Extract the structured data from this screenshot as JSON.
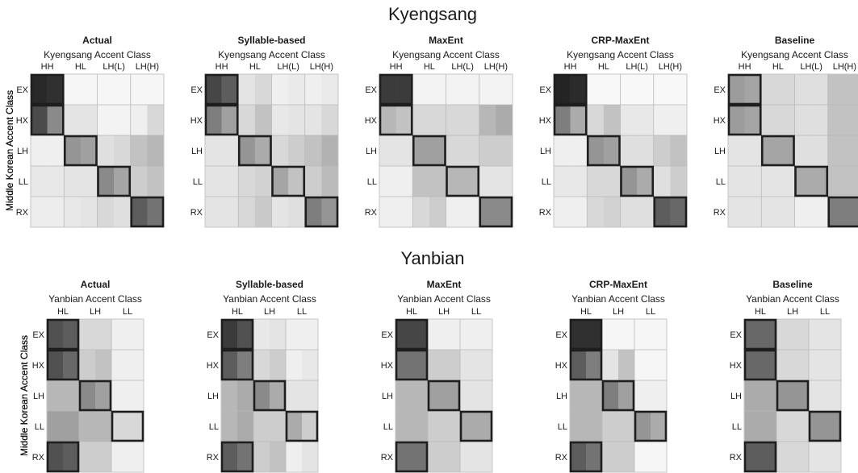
{
  "sections": [
    {
      "title": "Kyengsang",
      "chart_data": [
        {
          "type": "heatmap",
          "title": "Actual",
          "xlabel": "Kyengsang Accent Class",
          "ylabel": "Middle Korean Accent Class",
          "x_categories": [
            "HH",
            "HL",
            "LH(L)",
            "LH(H)"
          ],
          "y_categories": [
            "EX",
            "HX",
            "LH",
            "LL",
            "RX"
          ],
          "values": [
            [
              0.93,
              0.9,
              0.02,
              0.02,
              0.02,
              0.02,
              0.02,
              0.02
            ],
            [
              0.78,
              0.5,
              0.1,
              0.1,
              0.03,
              0.03,
              0.05,
              0.15
            ],
            [
              0.05,
              0.05,
              0.45,
              0.4,
              0.12,
              0.15,
              0.25,
              0.3
            ],
            [
              0.08,
              0.08,
              0.1,
              0.1,
              0.5,
              0.38,
              0.2,
              0.25
            ],
            [
              0.06,
              0.06,
              0.08,
              0.1,
              0.15,
              0.12,
              0.7,
              0.6
            ]
          ],
          "highlight": [
            [
              0,
              0
            ],
            [
              1,
              0
            ],
            [
              2,
              1
            ],
            [
              3,
              2
            ],
            [
              4,
              3
            ]
          ]
        },
        {
          "type": "heatmap",
          "title": "Syllable-based",
          "xlabel": "Kyengsang Accent Class",
          "ylabel": "Middle Korean Accent Class",
          "x_categories": [
            "HH",
            "HL",
            "LH(L)",
            "LH(H)"
          ],
          "y_categories": [
            "EX",
            "HX",
            "LH",
            "LL",
            "RX"
          ],
          "values": [
            [
              0.8,
              0.7,
              0.1,
              0.15,
              0.05,
              0.07,
              0.05,
              0.07
            ],
            [
              0.55,
              0.4,
              0.15,
              0.25,
              0.08,
              0.1,
              0.1,
              0.15
            ],
            [
              0.1,
              0.1,
              0.45,
              0.35,
              0.15,
              0.2,
              0.25,
              0.32
            ],
            [
              0.1,
              0.1,
              0.15,
              0.18,
              0.38,
              0.25,
              0.2,
              0.28
            ],
            [
              0.1,
              0.1,
              0.15,
              0.22,
              0.1,
              0.12,
              0.55,
              0.45
            ]
          ],
          "highlight": [
            [
              0,
              0
            ],
            [
              1,
              0
            ],
            [
              2,
              1
            ],
            [
              3,
              2
            ],
            [
              4,
              3
            ]
          ]
        },
        {
          "type": "heatmap",
          "title": "MaxEnt",
          "xlabel": "Kyengsang Accent Class",
          "ylabel": "Middle Korean Accent Class",
          "x_categories": [
            "HH",
            "HL",
            "LH(L)",
            "LH(H)"
          ],
          "y_categories": [
            "EX",
            "HX",
            "LH",
            "LL",
            "RX"
          ],
          "values": [
            [
              0.85,
              0.85,
              0.03,
              0.03,
              0.03,
              0.03,
              0.03,
              0.03
            ],
            [
              0.3,
              0.25,
              0.15,
              0.15,
              0.15,
              0.15,
              0.3,
              0.35
            ],
            [
              0.1,
              0.1,
              0.4,
              0.4,
              0.15,
              0.15,
              0.2,
              0.2
            ],
            [
              0.05,
              0.05,
              0.25,
              0.25,
              0.3,
              0.3,
              0.1,
              0.1
            ],
            [
              0.05,
              0.05,
              0.15,
              0.2,
              0.05,
              0.05,
              0.5,
              0.5
            ]
          ],
          "highlight": [
            [
              0,
              0
            ],
            [
              1,
              0
            ],
            [
              2,
              1
            ],
            [
              3,
              2
            ],
            [
              4,
              3
            ]
          ]
        },
        {
          "type": "heatmap",
          "title": "CRP-MaxEnt",
          "xlabel": "Kyengsang Accent Class",
          "ylabel": "Middle Korean Accent Class",
          "x_categories": [
            "HH",
            "HL",
            "LH(L)",
            "LH(H)"
          ],
          "y_categories": [
            "EX",
            "HX",
            "LH",
            "LL",
            "RX"
          ],
          "values": [
            [
              0.95,
              0.92,
              0.01,
              0.01,
              0.01,
              0.01,
              0.01,
              0.01
            ],
            [
              0.55,
              0.35,
              0.15,
              0.25,
              0.08,
              0.08,
              0.05,
              0.05
            ],
            [
              0.05,
              0.05,
              0.45,
              0.4,
              0.12,
              0.12,
              0.2,
              0.25
            ],
            [
              0.08,
              0.08,
              0.15,
              0.15,
              0.45,
              0.35,
              0.12,
              0.2
            ],
            [
              0.05,
              0.05,
              0.15,
              0.18,
              0.12,
              0.12,
              0.7,
              0.65
            ]
          ],
          "highlight": [
            [
              0,
              0
            ],
            [
              1,
              0
            ],
            [
              2,
              1
            ],
            [
              3,
              2
            ],
            [
              4,
              3
            ]
          ]
        },
        {
          "type": "heatmap",
          "title": "Baseline",
          "xlabel": "Kyengsang Accent Class",
          "ylabel": "Middle Korean Accent Class",
          "x_categories": [
            "HH",
            "HL",
            "LH(L)",
            "LH(H)"
          ],
          "y_categories": [
            "EX",
            "HX",
            "LH",
            "LL",
            "RX"
          ],
          "values": [
            [
              0.42,
              0.38,
              0.15,
              0.15,
              0.12,
              0.12,
              0.25,
              0.25
            ],
            [
              0.42,
              0.38,
              0.15,
              0.15,
              0.12,
              0.12,
              0.25,
              0.25
            ],
            [
              0.1,
              0.1,
              0.38,
              0.38,
              0.12,
              0.12,
              0.25,
              0.25
            ],
            [
              0.1,
              0.1,
              0.1,
              0.1,
              0.35,
              0.35,
              0.25,
              0.25
            ],
            [
              0.1,
              0.1,
              0.1,
              0.1,
              0.05,
              0.05,
              0.55,
              0.55
            ]
          ],
          "highlight": [
            [
              0,
              0
            ],
            [
              1,
              0
            ],
            [
              2,
              1
            ],
            [
              3,
              2
            ],
            [
              4,
              3
            ]
          ]
        }
      ]
    },
    {
      "title": "Yanbian",
      "chart_data": [
        {
          "type": "heatmap",
          "title": "Actual",
          "xlabel": "Yanbian Accent Class",
          "ylabel": "Middle Korean Accent Class",
          "x_categories": [
            "HL",
            "LH",
            "LL"
          ],
          "y_categories": [
            "EX",
            "HX",
            "LH",
            "LL",
            "RX"
          ],
          "values": [
            [
              0.75,
              0.7,
              0.15,
              0.15,
              0.05,
              0.05
            ],
            [
              0.75,
              0.65,
              0.2,
              0.25,
              0.05,
              0.05
            ],
            [
              0.3,
              0.3,
              0.5,
              0.4,
              0.05,
              0.05
            ],
            [
              0.4,
              0.4,
              0.3,
              0.3,
              0.15,
              0.15
            ],
            [
              0.75,
              0.7,
              0.2,
              0.2,
              0.05,
              0.05
            ]
          ],
          "highlight": [
            [
              0,
              0
            ],
            [
              1,
              0
            ],
            [
              2,
              1
            ],
            [
              3,
              2
            ],
            [
              4,
              0
            ]
          ]
        },
        {
          "type": "heatmap",
          "title": "Syllable-based",
          "xlabel": "Yanbian Accent Class",
          "ylabel": "Middle Korean Accent Class",
          "x_categories": [
            "HL",
            "LH",
            "LL"
          ],
          "y_categories": [
            "EX",
            "HX",
            "LH",
            "LL",
            "RX"
          ],
          "values": [
            [
              0.85,
              0.75,
              0.08,
              0.1,
              0.05,
              0.05
            ],
            [
              0.7,
              0.55,
              0.15,
              0.2,
              0.05,
              0.08
            ],
            [
              0.3,
              0.35,
              0.5,
              0.35,
              0.1,
              0.1
            ],
            [
              0.3,
              0.35,
              0.2,
              0.2,
              0.35,
              0.2
            ],
            [
              0.7,
              0.6,
              0.2,
              0.25,
              0.05,
              0.1
            ]
          ],
          "highlight": [
            [
              0,
              0
            ],
            [
              1,
              0
            ],
            [
              2,
              1
            ],
            [
              3,
              2
            ],
            [
              4,
              0
            ]
          ]
        },
        {
          "type": "heatmap",
          "title": "MaxEnt",
          "xlabel": "Yanbian Accent Class",
          "ylabel": "Middle Korean Accent Class",
          "x_categories": [
            "HL",
            "LH",
            "LL"
          ],
          "y_categories": [
            "EX",
            "HX",
            "LH",
            "LL",
            "RX"
          ],
          "values": [
            [
              0.8,
              0.8,
              0.05,
              0.05,
              0.05,
              0.05
            ],
            [
              0.6,
              0.6,
              0.2,
              0.2,
              0.1,
              0.1
            ],
            [
              0.3,
              0.3,
              0.4,
              0.4,
              0.1,
              0.1
            ],
            [
              0.3,
              0.3,
              0.2,
              0.2,
              0.35,
              0.35
            ],
            [
              0.6,
              0.6,
              0.2,
              0.2,
              0.1,
              0.1
            ]
          ],
          "highlight": [
            [
              0,
              0
            ],
            [
              1,
              0
            ],
            [
              2,
              1
            ],
            [
              3,
              2
            ],
            [
              4,
              0
            ]
          ]
        },
        {
          "type": "heatmap",
          "title": "CRP-MaxEnt",
          "xlabel": "Yanbian Accent Class",
          "ylabel": "Middle Korean Accent Class",
          "x_categories": [
            "HL",
            "LH",
            "LL"
          ],
          "y_categories": [
            "EX",
            "HX",
            "LH",
            "LL",
            "RX"
          ],
          "values": [
            [
              0.9,
              0.9,
              0.02,
              0.02,
              0.02,
              0.02
            ],
            [
              0.7,
              0.55,
              0.1,
              0.25,
              0.02,
              0.02
            ],
            [
              0.3,
              0.3,
              0.55,
              0.4,
              0.05,
              0.05
            ],
            [
              0.3,
              0.3,
              0.2,
              0.2,
              0.45,
              0.35
            ],
            [
              0.7,
              0.6,
              0.2,
              0.2,
              0.02,
              0.02
            ]
          ],
          "highlight": [
            [
              0,
              0
            ],
            [
              1,
              0
            ],
            [
              2,
              1
            ],
            [
              3,
              2
            ],
            [
              4,
              0
            ]
          ]
        },
        {
          "type": "heatmap",
          "title": "Baseline",
          "xlabel": "Yanbian Accent Class",
          "ylabel": "Middle Korean Accent Class",
          "x_categories": [
            "HL",
            "LH",
            "LL"
          ],
          "y_categories": [
            "EX",
            "HX",
            "LH",
            "LL",
            "RX"
          ],
          "values": [
            [
              0.65,
              0.65,
              0.15,
              0.15,
              0.1,
              0.1
            ],
            [
              0.65,
              0.65,
              0.15,
              0.15,
              0.1,
              0.1
            ],
            [
              0.35,
              0.35,
              0.45,
              0.45,
              0.1,
              0.1
            ],
            [
              0.35,
              0.35,
              0.15,
              0.15,
              0.45,
              0.45
            ],
            [
              0.7,
              0.7,
              0.15,
              0.15,
              0.1,
              0.1
            ]
          ],
          "highlight": [
            [
              0,
              0
            ],
            [
              1,
              0
            ],
            [
              2,
              1
            ],
            [
              3,
              2
            ],
            [
              4,
              0
            ]
          ]
        }
      ]
    }
  ]
}
